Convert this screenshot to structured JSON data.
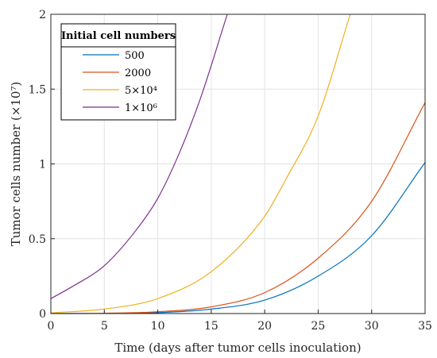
{
  "chart_data": {
    "type": "line",
    "title": "",
    "xlabel": "Time (days after tumor cells inoculation)",
    "ylabel": "Tumor cells number (×10⁷)",
    "xlim": [
      0,
      35
    ],
    "ylim": [
      0,
      2
    ],
    "x_ticks": [
      0,
      5,
      10,
      15,
      20,
      25,
      30,
      35
    ],
    "y_ticks": [
      0,
      0.5,
      1,
      1.5,
      2
    ],
    "x_tick_labels": [
      "0",
      "5",
      "10",
      "15",
      "20",
      "25",
      "30",
      "35"
    ],
    "y_tick_labels": [
      "0",
      "0.5",
      "1",
      "1.5",
      "2"
    ],
    "grid": true,
    "legend": {
      "title": "Initial cell numbers",
      "position": "top-left",
      "entries": [
        "500",
        "2000",
        "5×10⁴",
        "1×10⁶"
      ]
    },
    "series": [
      {
        "name": "500",
        "color": "#0072BD",
        "x": [
          0,
          5,
          10,
          15,
          20,
          25,
          30,
          35
        ],
        "y": [
          5e-05,
          0.0005,
          0.006,
          0.03,
          0.09,
          0.25,
          0.52,
          1.01
        ]
      },
      {
        "name": "2000",
        "color": "#D95319",
        "x": [
          0,
          5,
          10,
          15,
          20,
          25,
          30,
          35
        ],
        "y": [
          0.0002,
          0.002,
          0.012,
          0.045,
          0.14,
          0.37,
          0.75,
          1.41
        ]
      },
      {
        "name": "5×10⁴",
        "color": "#EDB120",
        "x": [
          0,
          5,
          10,
          15,
          20,
          22,
          25,
          28
        ],
        "y": [
          0.005,
          0.03,
          0.1,
          0.28,
          0.65,
          0.9,
          1.32,
          2.0
        ]
      },
      {
        "name": "1×10⁶",
        "color": "#7E2F8E",
        "x": [
          0,
          2,
          5,
          8,
          10,
          12,
          14,
          16.5
        ],
        "y": [
          0.1,
          0.18,
          0.32,
          0.56,
          0.77,
          1.07,
          1.44,
          2.0
        ]
      }
    ]
  }
}
